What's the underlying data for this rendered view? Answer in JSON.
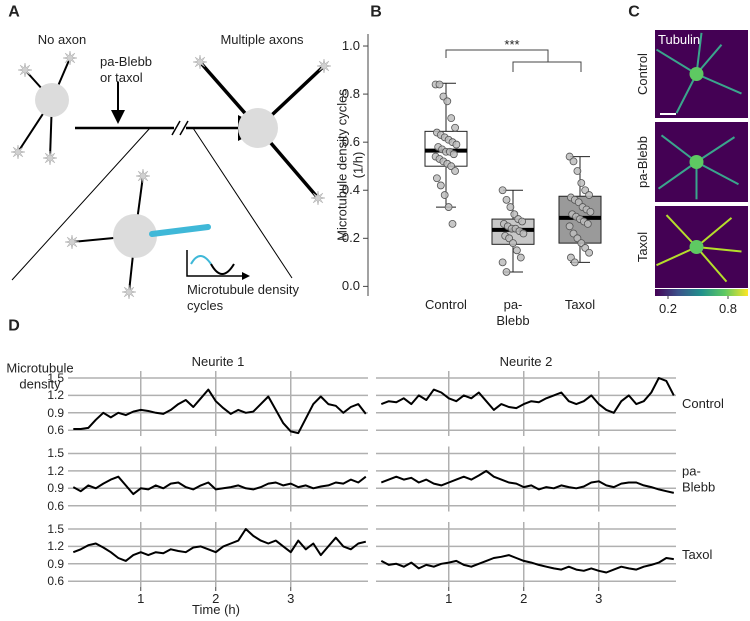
{
  "panel_labels": [
    "A",
    "B",
    "C",
    "D"
  ],
  "diagram": {
    "left_title": "No axon",
    "right_title": "Multiple axons",
    "treatment": "pa-Blebb or taxol",
    "inset_label": "Microtubule density cycles"
  },
  "chart_data": [
    {
      "type": "box",
      "ylabel": "Microtubule density cycles (1/h)",
      "categories": [
        "Control",
        "pa-Blebb",
        "Taxol"
      ],
      "colors": [
        "#ffffff",
        "#c8c8c8",
        "#9a9a9a"
      ],
      "boxes": [
        {
          "min": 0.33,
          "q1": 0.5,
          "median": 0.565,
          "q3": 0.645,
          "max": 0.845
        },
        {
          "min": 0.06,
          "q1": 0.175,
          "median": 0.235,
          "q3": 0.28,
          "max": 0.4
        },
        {
          "min": 0.1,
          "q1": 0.18,
          "median": 0.285,
          "q3": 0.375,
          "max": 0.54
        }
      ],
      "points": [
        [
          0.84,
          0.84,
          0.79,
          0.77,
          0.7,
          0.66,
          0.64,
          0.63,
          0.62,
          0.61,
          0.6,
          0.59,
          0.58,
          0.57,
          0.56,
          0.56,
          0.55,
          0.54,
          0.53,
          0.52,
          0.51,
          0.5,
          0.48,
          0.45,
          0.42,
          0.38,
          0.33,
          0.26
        ],
        [
          0.4,
          0.36,
          0.33,
          0.3,
          0.28,
          0.27,
          0.26,
          0.25,
          0.24,
          0.24,
          0.23,
          0.22,
          0.21,
          0.2,
          0.18,
          0.15,
          0.12,
          0.1,
          0.06
        ],
        [
          0.54,
          0.52,
          0.48,
          0.43,
          0.4,
          0.38,
          0.37,
          0.36,
          0.35,
          0.33,
          0.32,
          0.31,
          0.3,
          0.29,
          0.28,
          0.27,
          0.26,
          0.25,
          0.22,
          0.2,
          0.18,
          0.16,
          0.14,
          0.12,
          0.1
        ]
      ],
      "ylim": [
        -0.04,
        1.05
      ],
      "yticks": [
        {
          "value": 0,
          "label": "0.0"
        },
        0.2,
        0.4,
        0.6,
        0.8,
        {
          "value": 1,
          "label": "1.0"
        }
      ],
      "annotation": "***"
    },
    {
      "type": "image_grid",
      "label": "Tubulin",
      "rows": [
        "Control",
        "pa-Blebb",
        "Taxol"
      ],
      "colorbar": {
        "lim": [
          0.07,
          1.0
        ],
        "ticks": [
          0.2,
          0.8
        ]
      }
    },
    {
      "type": "line",
      "ylabel": "Microtubule density",
      "xlabel": "Time (h)",
      "columns": [
        "Neurite 1",
        "Neurite 2"
      ],
      "x": [
        0.1,
        0.2,
        0.3,
        0.4,
        0.5,
        0.6,
        0.7,
        0.8,
        0.9,
        1.0,
        1.1,
        1.2,
        1.3,
        1.4,
        1.5,
        1.6,
        1.7,
        1.8,
        1.9,
        2.0,
        2.1,
        2.2,
        2.3,
        2.4,
        2.5,
        2.6,
        2.7,
        2.8,
        2.9,
        3.0,
        3.1,
        3.2,
        3.3,
        3.4,
        3.5,
        3.6,
        3.7,
        3.8,
        3.9,
        4.0
      ],
      "rows": [
        {
          "name": "Control",
          "values": [
            [
              0.62,
              0.62,
              0.64,
              0.78,
              0.9,
              0.82,
              0.9,
              0.86,
              0.92,
              0.95,
              0.93,
              0.9,
              0.88,
              0.95,
              1.05,
              1.12,
              1.0,
              1.15,
              1.3,
              1.1,
              0.98,
              0.88,
              0.95,
              0.9,
              0.92,
              1.05,
              1.18,
              0.95,
              0.72,
              0.58,
              0.55,
              0.8,
              1.05,
              1.18,
              1.05,
              1.02,
              0.9,
              1.0,
              1.05,
              0.88
            ],
            [
              1.05,
              1.1,
              1.08,
              1.15,
              1.05,
              1.2,
              1.12,
              1.3,
              1.25,
              1.15,
              1.1,
              1.2,
              1.15,
              1.25,
              1.1,
              0.95,
              1.05,
              1.0,
              0.98,
              1.05,
              1.1,
              1.08,
              1.15,
              1.2,
              1.25,
              1.1,
              1.05,
              1.1,
              1.2,
              1.05,
              0.95,
              0.9,
              1.1,
              1.2,
              1.05,
              1.1,
              1.25,
              1.5,
              1.45,
              1.2
            ]
          ]
        },
        {
          "name": "pa-Blebb",
          "values": [
            [
              0.92,
              0.85,
              0.95,
              0.9,
              0.98,
              1.05,
              1.1,
              0.95,
              0.8,
              0.9,
              0.88,
              0.95,
              0.9,
              0.98,
              1.0,
              0.92,
              0.88,
              0.95,
              1.0,
              0.88,
              0.9,
              0.92,
              0.95,
              0.9,
              0.88,
              0.92,
              0.98,
              1.0,
              0.95,
              0.98,
              0.92,
              0.95,
              0.9,
              0.93,
              0.95,
              1.0,
              0.98,
              1.05,
              1.0,
              1.1
            ],
            [
              1.0,
              1.05,
              1.1,
              1.05,
              1.08,
              1.0,
              1.05,
              0.98,
              0.95,
              1.0,
              1.05,
              1.1,
              1.05,
              1.12,
              1.2,
              1.1,
              1.05,
              1.0,
              0.98,
              0.92,
              0.95,
              0.88,
              0.92,
              0.9,
              0.95,
              0.92,
              0.9,
              0.93,
              1.0,
              1.02,
              0.95,
              0.92,
              0.98,
              1.0,
              1.0,
              0.95,
              0.92,
              0.88,
              0.85,
              0.82
            ]
          ]
        },
        {
          "name": "Taxol",
          "values": [
            [
              1.1,
              1.15,
              1.22,
              1.25,
              1.18,
              1.1,
              1.0,
              0.95,
              1.05,
              1.1,
              1.05,
              1.1,
              1.08,
              1.15,
              1.12,
              1.1,
              1.18,
              1.2,
              1.15,
              1.1,
              1.2,
              1.25,
              1.3,
              1.5,
              1.38,
              1.3,
              1.25,
              1.3,
              1.2,
              1.1,
              1.3,
              1.15,
              1.25,
              1.05,
              1.2,
              1.35,
              1.2,
              1.15,
              1.25,
              1.28
            ],
            [
              0.95,
              0.88,
              0.9,
              0.85,
              0.92,
              0.82,
              0.88,
              0.85,
              0.9,
              0.92,
              0.95,
              0.88,
              0.85,
              0.9,
              0.95,
              1.0,
              1.02,
              1.05,
              1.0,
              0.95,
              0.92,
              0.88,
              0.85,
              0.82,
              0.8,
              0.85,
              0.8,
              0.78,
              0.82,
              0.78,
              0.75,
              0.8,
              0.85,
              0.82,
              0.8,
              0.85,
              0.88,
              0.92,
              1.0,
              0.98
            ]
          ]
        }
      ],
      "xlim": [
        0.03,
        4.03
      ],
      "xticks": [
        1,
        2,
        3
      ],
      "ylim": [
        0.5,
        1.62
      ],
      "yticks": [
        0.6,
        0.9,
        1.2,
        1.5
      ],
      "color": "#000000",
      "grid": true
    }
  ]
}
